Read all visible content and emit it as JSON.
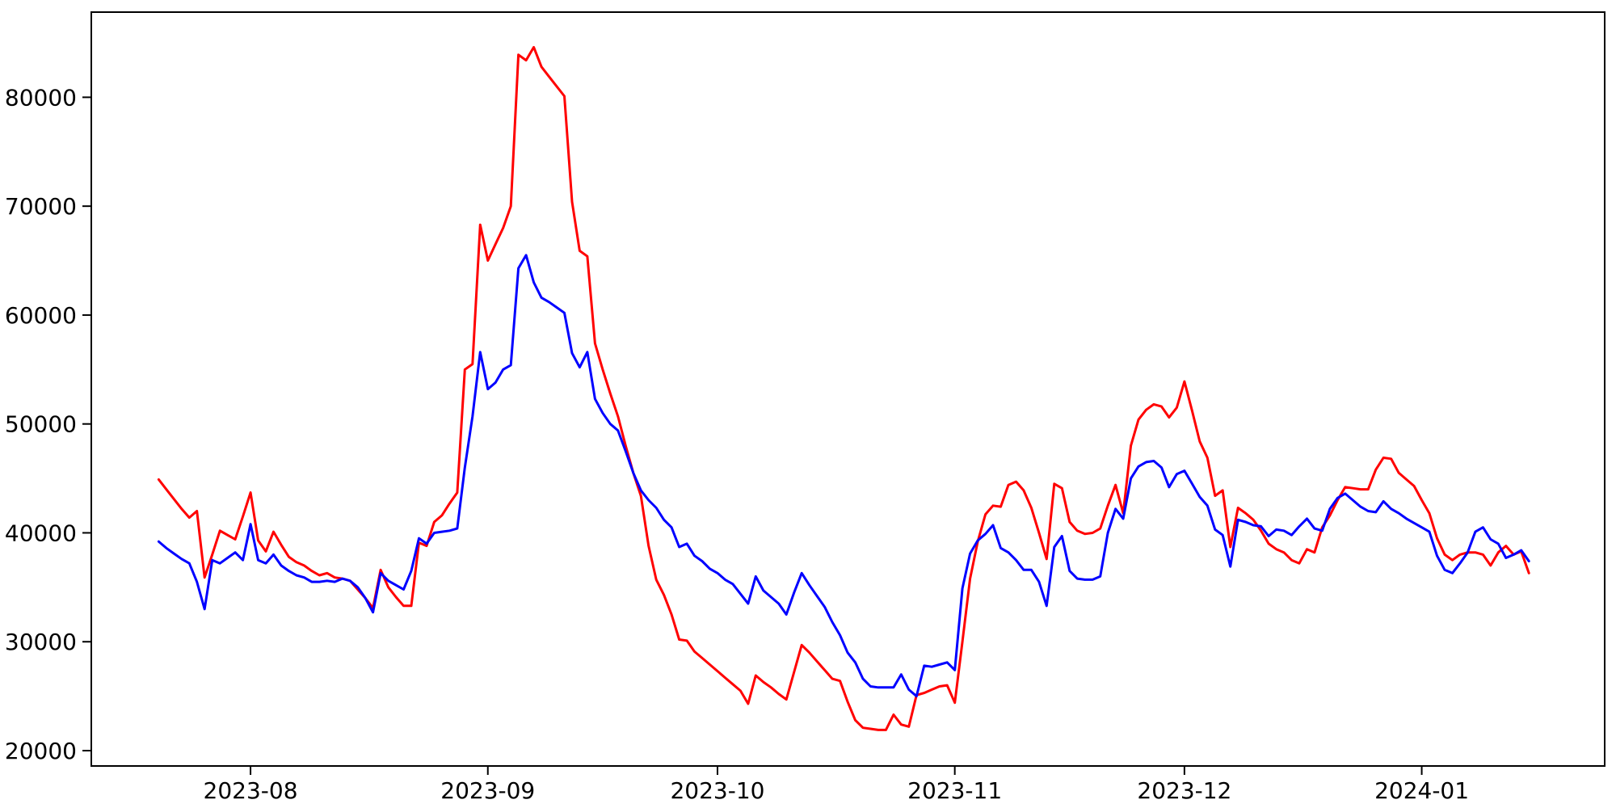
{
  "figure": {
    "background_color": "#ffffff",
    "plot_border_color": "#000000"
  },
  "chart_data": {
    "type": "line",
    "title": "",
    "xlabel": "",
    "ylabel": "",
    "grid": false,
    "legend": "none",
    "x_axis": {
      "start_date": "2023-07-20",
      "frequency": "daily",
      "tick_labels": [
        "2023-08",
        "2023-09",
        "2023-10",
        "2023-11",
        "2023-12",
        "2024-01"
      ],
      "tick_indices": [
        12,
        43,
        73,
        104,
        134,
        165
      ],
      "index_range": [
        -8.8,
        188.9
      ]
    },
    "y_axis": {
      "tick_labels": [
        "20000",
        "30000",
        "40000",
        "50000",
        "60000",
        "70000",
        "80000"
      ],
      "ticks": [
        20000,
        30000,
        40000,
        50000,
        60000,
        70000,
        80000
      ],
      "range": [
        18590,
        87820
      ]
    },
    "series": [
      {
        "name": "red-series",
        "color": "#ff0000",
        "values": [
          44900,
          44000,
          43100,
          42200,
          41400,
          42000,
          35900,
          38000,
          40200,
          39800,
          39400,
          41500,
          43700,
          39300,
          38300,
          40100,
          38900,
          37800,
          37300,
          37000,
          36500,
          36100,
          36300,
          35900,
          35800,
          35600,
          34800,
          34000,
          33100,
          36600,
          35000,
          34100,
          33300,
          33300,
          39100,
          38800,
          41000,
          41600,
          42700,
          43700,
          55000,
          55500,
          68300,
          65000,
          66500,
          68000,
          70000,
          83900,
          83400,
          84600,
          82800,
          81900,
          81000,
          80100,
          70400,
          65900,
          65400,
          57400,
          55000,
          52800,
          50700,
          48000,
          45500,
          43400,
          38800,
          35700,
          34300,
          32500,
          30200,
          30100,
          29100,
          28500,
          27900,
          27300,
          26700,
          26100,
          25500,
          24300,
          26900,
          26300,
          25800,
          25200,
          24700,
          27200,
          29700,
          29000,
          28200,
          27400,
          26600,
          26400,
          24500,
          22800,
          22100,
          22000,
          21900,
          21900,
          23300,
          22400,
          22200,
          25100,
          25300,
          25600,
          25900,
          26000,
          24400,
          30000,
          35800,
          39200,
          41700,
          42500,
          42400,
          44400,
          44700,
          43900,
          42300,
          40000,
          37600,
          44500,
          44100,
          41000,
          40200,
          39900,
          40000,
          40400,
          42500,
          44400,
          41800,
          48000,
          50400,
          51300,
          51800,
          51600,
          50600,
          51500,
          53900,
          51200,
          48400,
          46900,
          43400,
          43900,
          38700,
          42300,
          41800,
          41200,
          40200,
          39000,
          38500,
          38200,
          37500,
          37200,
          38500,
          38200,
          40500,
          41600,
          43000,
          44200,
          44100,
          44000,
          44000,
          45800,
          46900,
          46800,
          45500,
          44900,
          44300,
          43000,
          41800,
          39500,
          38000,
          37500,
          38000,
          38200,
          38200,
          38000,
          37000,
          38200,
          38800,
          38000,
          38300,
          36300
        ]
      },
      {
        "name": "blue-series",
        "color": "#0000ff",
        "values": [
          39200,
          38600,
          38100,
          37600,
          37200,
          35500,
          33000,
          37500,
          37200,
          37700,
          38200,
          37500,
          40800,
          37500,
          37200,
          38000,
          37000,
          36500,
          36100,
          35900,
          35500,
          35500,
          35600,
          35500,
          35800,
          35600,
          35000,
          34000,
          32700,
          36300,
          35600,
          35200,
          34800,
          36500,
          39500,
          39000,
          40000,
          40100,
          40200,
          40400,
          46000,
          50700,
          56600,
          53200,
          53800,
          55000,
          55400,
          64300,
          65500,
          63000,
          61600,
          61200,
          60700,
          60200,
          56500,
          55200,
          56600,
          52300,
          51000,
          50000,
          49400,
          47500,
          45500,
          43900,
          43000,
          42300,
          41200,
          40500,
          38700,
          39000,
          37900,
          37400,
          36700,
          36300,
          35700,
          35300,
          34400,
          33500,
          36000,
          34700,
          34100,
          33500,
          32500,
          34500,
          36300,
          35200,
          34200,
          33200,
          31800,
          30600,
          29000,
          28100,
          26600,
          25900,
          25800,
          25800,
          25800,
          27000,
          25600,
          25000,
          27800,
          27700,
          27900,
          28100,
          27400,
          34900,
          38100,
          39300,
          39900,
          40700,
          38600,
          38200,
          37500,
          36600,
          36600,
          35500,
          33300,
          38700,
          39700,
          36500,
          35800,
          35700,
          35700,
          36000,
          40000,
          42200,
          41300,
          45000,
          46100,
          46500,
          46600,
          46000,
          44200,
          45400,
          45700,
          44500,
          43300,
          42500,
          40300,
          39800,
          36900,
          41200,
          41000,
          40700,
          40600,
          39700,
          40300,
          40200,
          39800,
          40600,
          41300,
          40400,
          40200,
          42200,
          43200,
          43600,
          43000,
          42400,
          42000,
          41900,
          42900,
          42200,
          41800,
          41300,
          40900,
          40500,
          40100,
          37900,
          36600,
          36300,
          37200,
          38200,
          40100,
          40500,
          39400,
          39000,
          37700,
          38000,
          38400,
          37400
        ]
      }
    ]
  }
}
